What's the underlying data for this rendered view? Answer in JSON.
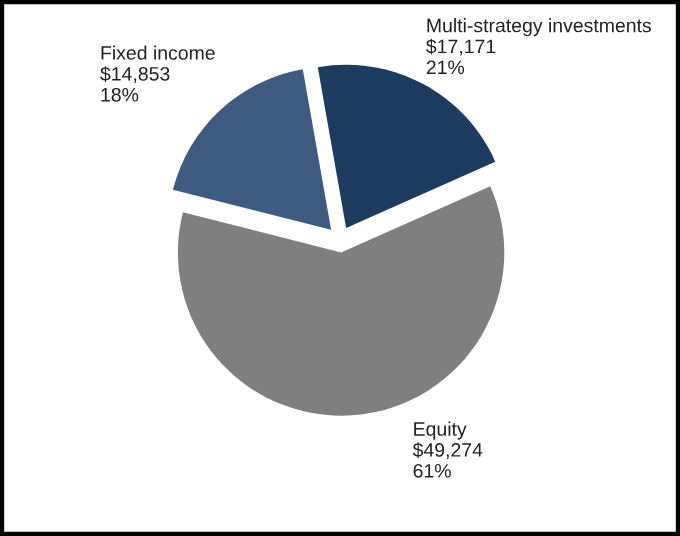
{
  "chart_data": {
    "type": "pie",
    "categories": [
      "Multi-strategy investments",
      "Equity",
      "Fixed income"
    ],
    "values": [
      17171,
      49274,
      14853
    ],
    "value_labels": [
      "$17,171\n21%",
      "$49,274\n61%",
      "$14,853\n18%"
    ],
    "colors": [
      "#1d3b5e",
      "#7f7f7f",
      "#3e5a7e"
    ],
    "legend": false
  }
}
